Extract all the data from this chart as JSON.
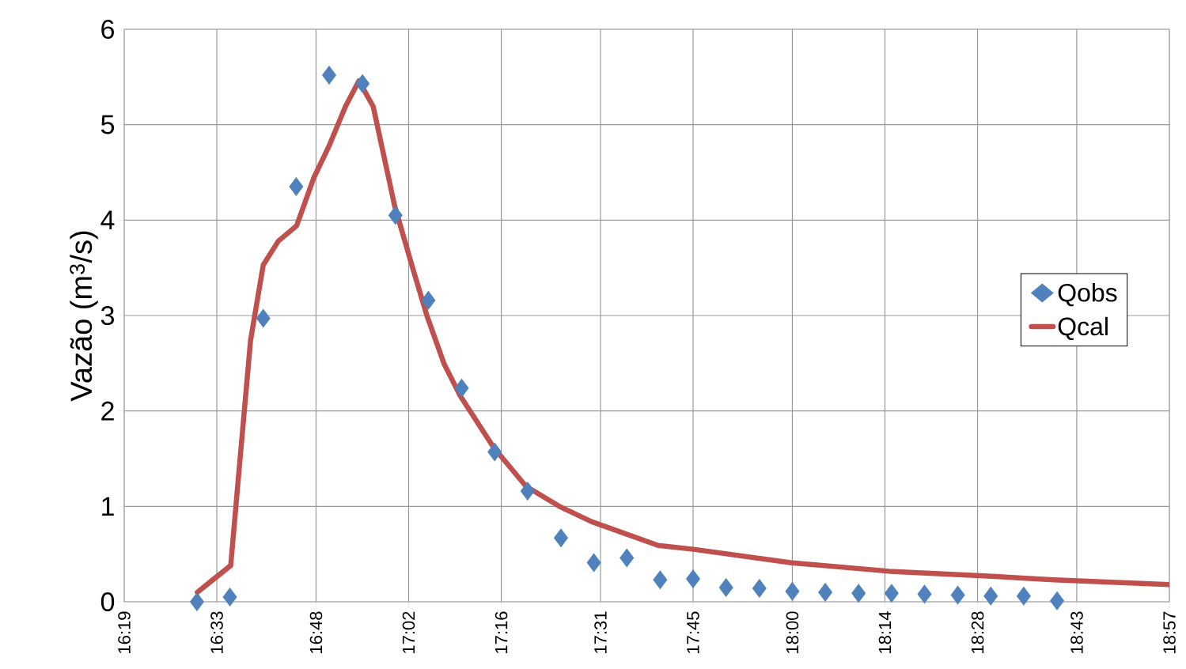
{
  "chart_data": {
    "type": "scatter",
    "ylabel": "Vazão (m$^{3}$/s)",
    "xlim": [
      16.3167,
      18.95
    ],
    "ylim": [
      0,
      6
    ],
    "xticks": [
      {
        "value": 16.3167,
        "label": "16:19"
      },
      {
        "value": 16.55,
        "label": "16:33"
      },
      {
        "value": 16.8,
        "label": "16:48"
      },
      {
        "value": 17.0333,
        "label": "17:02"
      },
      {
        "value": 17.2667,
        "label": "17:16"
      },
      {
        "value": 17.5167,
        "label": "17:31"
      },
      {
        "value": 17.75,
        "label": "17:45"
      },
      {
        "value": 18.0,
        "label": "18:00"
      },
      {
        "value": 18.2333,
        "label": "18:14"
      },
      {
        "value": 18.4667,
        "label": "18:28"
      },
      {
        "value": 18.7167,
        "label": "18:43"
      },
      {
        "value": 18.95,
        "label": "18:57"
      }
    ],
    "yticks": [
      0,
      1,
      2,
      3,
      4,
      5,
      6
    ],
    "grid": true,
    "legend": "right",
    "series": [
      {
        "name": "Qobs",
        "marker": "diamond",
        "color": "#4f81bd",
        "x": [
          16.5,
          16.583,
          16.667,
          16.75,
          16.833,
          16.917,
          17.0,
          17.083,
          17.167,
          17.25,
          17.333,
          17.417,
          17.5,
          17.583,
          17.667,
          17.75,
          17.833,
          17.917,
          18.0,
          18.083,
          18.167,
          18.25,
          18.333,
          18.417,
          18.5,
          18.583,
          18.667
        ],
        "values": [
          0.0,
          0.05,
          2.97,
          4.35,
          5.52,
          5.43,
          4.05,
          3.16,
          2.24,
          1.57,
          1.16,
          0.67,
          0.41,
          0.46,
          0.23,
          0.24,
          0.15,
          0.14,
          0.11,
          0.1,
          0.09,
          0.09,
          0.08,
          0.07,
          0.06,
          0.06,
          0.01
        ]
      },
      {
        "name": "Qcal",
        "type": "line",
        "marker": "none",
        "line_style": "solid",
        "color": "#c0504d",
        "x": [
          16.501,
          16.585,
          16.605,
          16.635,
          16.667,
          16.705,
          16.751,
          16.794,
          16.832,
          16.874,
          16.908,
          16.944,
          16.998,
          17.044,
          17.08,
          17.123,
          17.163,
          17.247,
          17.329,
          17.413,
          17.494,
          17.662,
          17.751,
          17.995,
          18.244,
          18.493,
          18.659,
          18.95
        ],
        "values": [
          0.1,
          0.38,
          1.33,
          2.74,
          3.53,
          3.78,
          3.94,
          4.44,
          4.77,
          5.19,
          5.46,
          5.19,
          4.15,
          3.49,
          2.99,
          2.49,
          2.16,
          1.62,
          1.21,
          1.0,
          0.84,
          0.59,
          0.55,
          0.41,
          0.32,
          0.27,
          0.23,
          0.18
        ]
      }
    ]
  }
}
